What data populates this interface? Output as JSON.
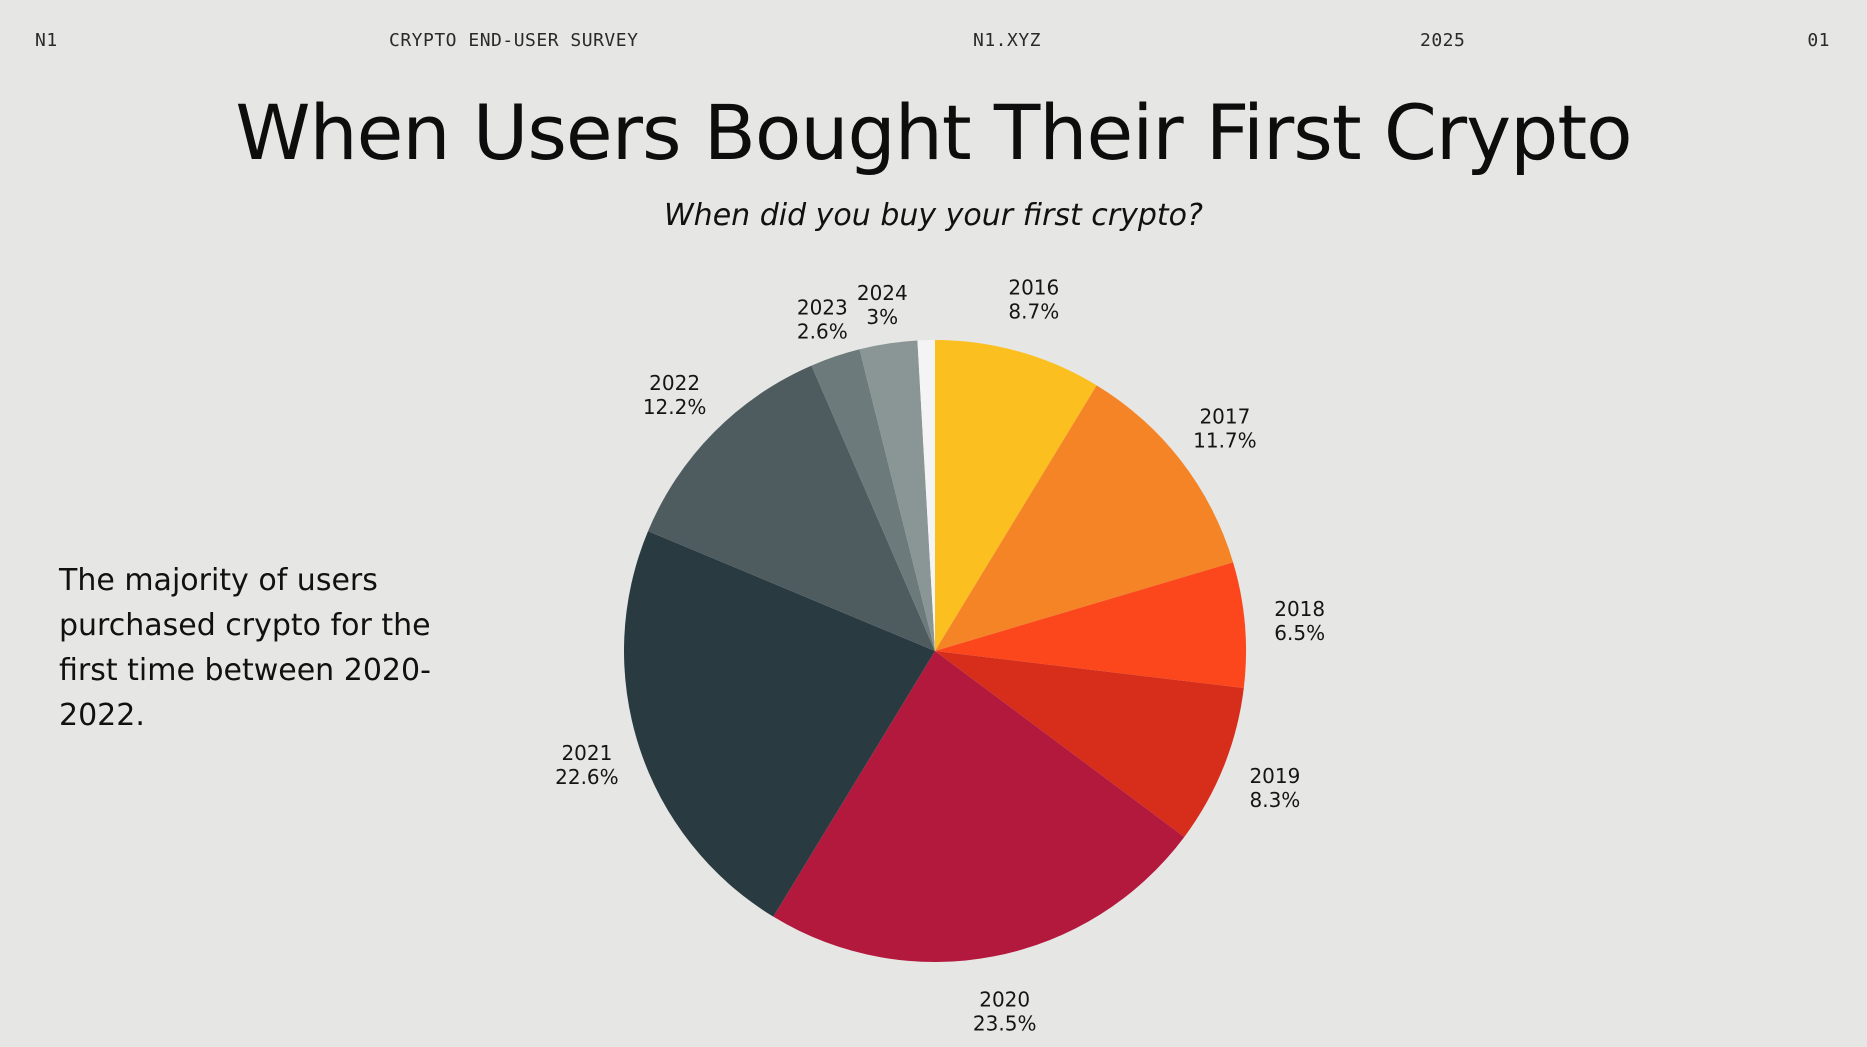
{
  "header": {
    "brand": "N1",
    "survey": "CRYPTO END-USER SURVEY",
    "site": "N1.XYZ",
    "year": "2025",
    "page": "01"
  },
  "title": "When Users Bought Their First Crypto",
  "subtitle": "When did you buy your first crypto?",
  "note": "The majority of users purchased crypto for the first time between 2020-2022.",
  "chart_data": {
    "type": "pie",
    "start_angle_deg": 0,
    "direction": "clockwise",
    "slices": [
      {
        "label": "2016",
        "value": 8.7,
        "display": "8.7%",
        "color": "#FCBF20"
      },
      {
        "label": "2017",
        "value": 11.7,
        "display": "11.7%",
        "color": "#F48426"
      },
      {
        "label": "2018",
        "value": 6.5,
        "display": "6.5%",
        "color": "#FC461C"
      },
      {
        "label": "2019",
        "value": 8.3,
        "display": "8.3%",
        "color": "#D72D1B"
      },
      {
        "label": "2020",
        "value": 23.5,
        "display": "23.5%",
        "color": "#B3193D"
      },
      {
        "label": "2021",
        "value": 22.6,
        "display": "22.6%",
        "color": "#293B41"
      },
      {
        "label": "2022",
        "value": 12.2,
        "display": "12.2%",
        "color": "#4F5C5F"
      },
      {
        "label": "2023",
        "value": 2.6,
        "display": "2.6%",
        "color": "#6D7A7B"
      },
      {
        "label": "2024",
        "value": 3,
        "display": "3%",
        "color": "#8A9596"
      },
      {
        "label": "",
        "value": 0.9,
        "display": "",
        "color": "#F4F4F4"
      }
    ]
  }
}
